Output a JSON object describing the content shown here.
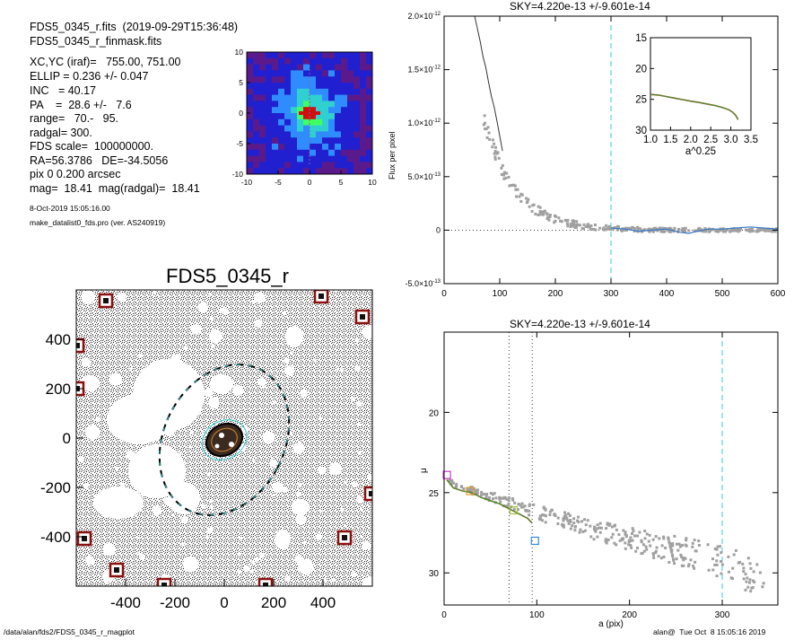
{
  "header": {
    "file_line": "FDS5_0345_r.fits  (2019-09-29T15:36:48)",
    "mask_line": "FDS5_0345_r_finmask.fits"
  },
  "params": [
    "XC,YC (iraf)=   755.00, 751.00",
    "ELLIP = 0.236 +/- 0.047",
    "INC   = 40.17",
    "PA    =  28.6 +/-   7.6",
    "range=   70.-   95.",
    "radgal= 300.",
    "FDS scale=  100000000.",
    "RA=56.3786   DE=-34.5056",
    "pix 0 0.200 arcsec",
    "mag=  18.41  mag(radgal)=  18.41"
  ],
  "run_date": "8-Oct-2019 15:05:16.00",
  "program": "make_datalist0_fds.pro (ver. AS240919)",
  "footer": {
    "path": "/data/alan/fds2/FDS5_0345_r_magplot",
    "user_time": "alan@  Tue Oct  8 15:05:16 2019"
  },
  "colors": {
    "frame": "#000000",
    "sky_line": "#33cccc",
    "points": "#a0a0a0",
    "profile_green": "#2e9e2e",
    "profile_red": "#c8321e",
    "mask_white": "#ffffff",
    "box_red": "#8b1010"
  },
  "chart_data": [
    {
      "type": "heatmap",
      "name": "thumbnail",
      "xlim": [
        -10,
        10
      ],
      "ylim": [
        -10,
        10
      ],
      "xticks": [
        "-10",
        "-5",
        "0",
        "5",
        "10"
      ],
      "yticks": [
        "10",
        "5",
        "0",
        "-5",
        "-10"
      ],
      "colormap": [
        "#000000",
        "#5a1a8c",
        "#2020d0",
        "#2f8cff",
        "#30d0d0",
        "#40ff60",
        "#e0ff20",
        "#ff8000",
        "#d01010"
      ]
    },
    {
      "type": "scatter",
      "name": "mask_image",
      "title": "FDS5_0345_r",
      "xlim": [
        -600,
        600
      ],
      "ylim": [
        -600,
        600
      ],
      "xticks": [
        "-400",
        "-200",
        "0",
        "200",
        "400"
      ],
      "yticks": [
        "400",
        "200",
        "0",
        "-200",
        "-400"
      ]
    },
    {
      "type": "line",
      "name": "sky_profile",
      "title": "SKY=4.220e-13 +/-9.601e-14",
      "xlabel": "",
      "ylabel": "Flux per pixel",
      "xlim": [
        0,
        600
      ],
      "ylim": [
        -5e-13,
        2e-12
      ],
      "xticks": [
        "0",
        "100",
        "200",
        "300",
        "400",
        "500",
        "600"
      ],
      "yticks": [
        {
          "value": 2e-12,
          "mant": "2.0×10",
          "exp": "-12"
        },
        {
          "value": 1.5e-12,
          "mant": "1.5×10",
          "exp": "-12"
        },
        {
          "value": 1e-12,
          "mant": "1.0×10",
          "exp": "-12"
        },
        {
          "value": 5e-13,
          "mant": "5.0×10",
          "exp": "-13"
        },
        {
          "value": 0,
          "mant": "0",
          "exp": ""
        },
        {
          "value": -5e-13,
          "mant": "-5.0×10",
          "exp": "-13"
        }
      ],
      "sky_radius": 300,
      "steep_x": [
        55,
        60,
        65,
        70,
        75,
        80,
        85,
        90,
        95,
        100,
        105
      ],
      "steep_y": [
        2e-12,
        1.88e-12,
        1.76e-12,
        1.62e-12,
        1.52e-12,
        1.38e-12,
        1.25e-12,
        1.15e-12,
        1.02e-12,
        8.8e-13,
        7.4e-13
      ],
      "tail_x": [
        300,
        325,
        350,
        375,
        400,
        425,
        440,
        455,
        475,
        500,
        525,
        550,
        575,
        600
      ],
      "tail_y": [
        2e-14,
        1e-14,
        -1e-14,
        0,
        1e-14,
        -2e-14,
        -3e-14,
        -1e-14,
        1e-14,
        1e-14,
        2e-14,
        3e-14,
        2e-14,
        1e-14
      ]
    },
    {
      "type": "line",
      "name": "inset_profile",
      "xlabel": "a^0.25",
      "xlim": [
        1.0,
        3.5
      ],
      "ylim": [
        15,
        30
      ],
      "yinverted": true,
      "xticks": [
        "1.0",
        "1.5",
        "2.0",
        "2.5",
        "3.0",
        "3.5"
      ],
      "yticks": [
        "15",
        "20",
        "25",
        "30"
      ],
      "x": [
        1.0,
        1.2,
        1.4,
        1.6,
        1.8,
        2.0,
        2.2,
        2.4,
        2.6,
        2.8,
        2.95,
        3.05,
        3.12,
        3.18
      ],
      "y": [
        24.2,
        24.3,
        24.55,
        24.8,
        25.05,
        25.3,
        25.5,
        25.75,
        26.0,
        26.35,
        26.7,
        27.1,
        27.6,
        28.3
      ]
    },
    {
      "type": "scatter",
      "name": "mu_profile",
      "title": "SKY=4.220e-13 +/-9.601e-14",
      "xlabel": "a (pix)",
      "ylabel": "μ",
      "xlim": [
        0,
        360
      ],
      "ylim": [
        32,
        15
      ],
      "xticks": [
        "0",
        "100",
        "200",
        "300"
      ],
      "yticks": [
        "20",
        "25",
        "30"
      ],
      "range_lines": [
        70,
        95
      ],
      "sky_radius": 300,
      "profile_x": [
        3,
        10,
        20,
        30,
        40,
        50,
        60,
        70,
        80,
        90,
        95
      ],
      "profile_y": [
        24.2,
        24.7,
        24.9,
        25.0,
        25.3,
        25.5,
        25.7,
        26.0,
        26.3,
        26.6,
        26.9
      ],
      "markers": [
        {
          "x": 3,
          "y": 23.9,
          "color": "#cc33cc"
        },
        {
          "x": 28,
          "y": 24.9,
          "color": "#e0a030"
        },
        {
          "x": 75,
          "y": 26.1,
          "color": "#a0c040"
        },
        {
          "x": 98,
          "y": 28.0,
          "color": "#3a8ad8"
        }
      ]
    }
  ]
}
